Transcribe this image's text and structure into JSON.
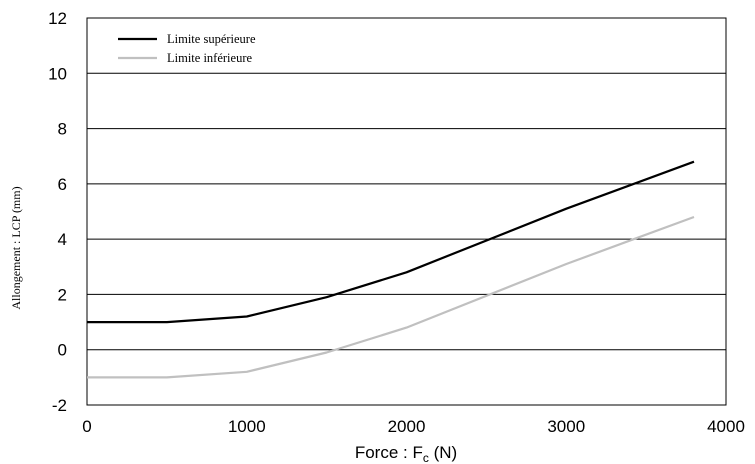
{
  "chart_data": {
    "type": "line",
    "xlabel_main": "Force : F",
    "xlabel_sub": "c",
    "xlabel_unit": " (N)",
    "ylabel": "Allongement : LCP (mm)",
    "xlim": [
      0,
      4000
    ],
    "ylim": [
      -2,
      12
    ],
    "x_ticks": [
      0,
      1000,
      2000,
      3000,
      4000
    ],
    "y_ticks": [
      -2,
      0,
      2,
      4,
      6,
      8,
      10,
      12
    ],
    "grid": "horizontal",
    "legend_position": "top-left",
    "series": [
      {
        "name": "Limite supérieure",
        "color": "#000000",
        "x": [
          0,
          500,
          1000,
          1500,
          2000,
          3000,
          3800
        ],
        "y": [
          1.0,
          1.0,
          1.2,
          1.9,
          2.8,
          5.1,
          6.8
        ]
      },
      {
        "name": "Limite inférieure",
        "color": "#c0c0c0",
        "x": [
          0,
          500,
          1000,
          1500,
          2000,
          3000,
          3800
        ],
        "y": [
          -1.0,
          -1.0,
          -0.8,
          -0.1,
          0.8,
          3.1,
          4.8
        ]
      }
    ]
  }
}
